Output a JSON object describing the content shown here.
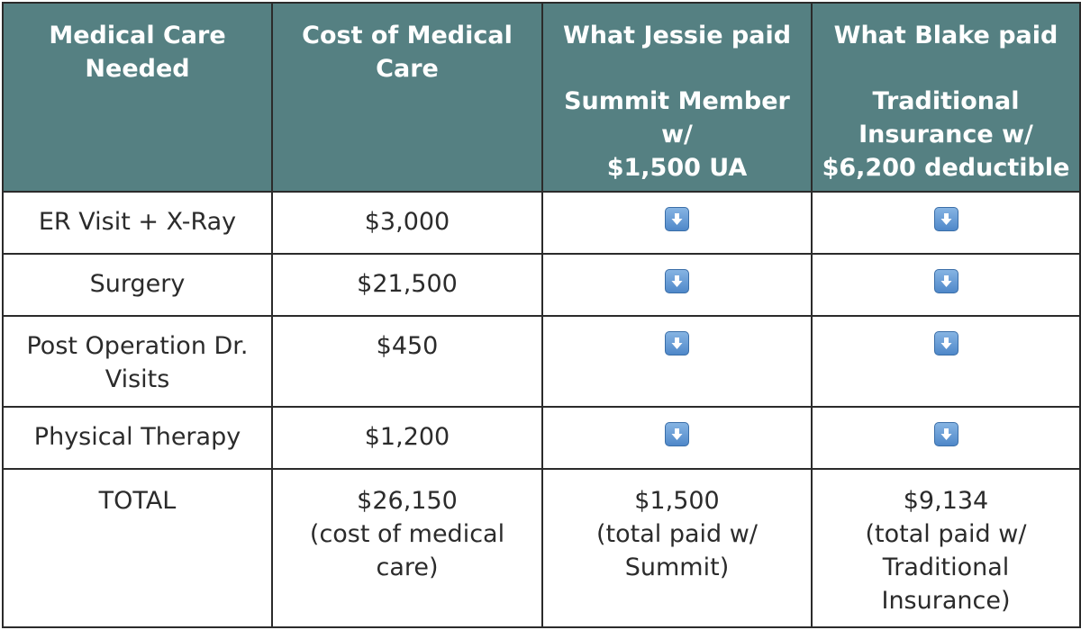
{
  "header": {
    "col1": [
      "Medical Care",
      "Needed"
    ],
    "col2": [
      "Cost of Medical",
      "Care"
    ],
    "col3": {
      "title": "What Jessie paid",
      "sub": [
        "Summit Member w/",
        "$1,500 UA"
      ]
    },
    "col4": {
      "title": "What Blake paid",
      "sub": [
        "Traditional",
        "Insurance w/",
        "$6,200 deductible"
      ]
    }
  },
  "rows": [
    {
      "care": [
        "ER Visit + X-Ray"
      ],
      "cost": "$3,000",
      "jessie_icon": "down-arrow-icon",
      "blake_icon": "down-arrow-icon"
    },
    {
      "care": [
        "Surgery"
      ],
      "cost": "$21,500",
      "jessie_icon": "down-arrow-icon",
      "blake_icon": "down-arrow-icon"
    },
    {
      "care": [
        "Post Operation Dr.",
        "Visits"
      ],
      "cost": "$450",
      "jessie_icon": "down-arrow-icon",
      "blake_icon": "down-arrow-icon"
    },
    {
      "care": [
        "Physical Therapy"
      ],
      "cost": "$1,200",
      "jessie_icon": "down-arrow-icon",
      "blake_icon": "down-arrow-icon"
    }
  ],
  "total": {
    "label": "TOTAL",
    "cost": [
      "$26,150",
      "(cost of medical",
      "care)"
    ],
    "jessie": [
      "$1,500",
      "(total paid w/",
      "Summit)"
    ],
    "blake": [
      "$9,134",
      "(total paid w/",
      "Traditional",
      "Insurance)"
    ]
  },
  "colors": {
    "header_bg": "#558082",
    "header_text": "#ffffff",
    "border": "#2b2b2b",
    "icon_blue": "#4f88c9"
  }
}
